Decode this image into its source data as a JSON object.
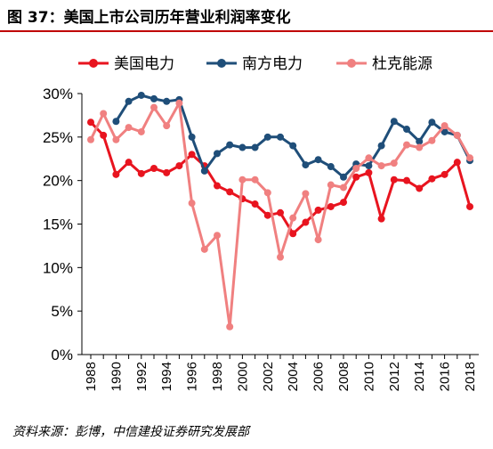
{
  "header": {
    "title": "图 37：美国上市公司历年营业利润率变化"
  },
  "footer": {
    "source": "资料来源：彭博，中信建投证券研究发展部"
  },
  "chart_data": {
    "type": "line",
    "title": "",
    "xlabel": "",
    "ylabel": "",
    "ylim": [
      0,
      30
    ],
    "yticks": [
      "0%",
      "5%",
      "10%",
      "15%",
      "20%",
      "25%",
      "30%"
    ],
    "xticks": [
      "1988",
      "1990",
      "1992",
      "1994",
      "1996",
      "1998",
      "2000",
      "2002",
      "2004",
      "2006",
      "2008",
      "2010",
      "2012",
      "2014",
      "2016",
      "2018"
    ],
    "grid": false,
    "legend": "top",
    "x": [
      1988,
      1989,
      1990,
      1991,
      1992,
      1993,
      1994,
      1995,
      1996,
      1997,
      1998,
      1999,
      2000,
      2001,
      2002,
      2003,
      2004,
      2005,
      2006,
      2007,
      2008,
      2009,
      2010,
      2011,
      2012,
      2013,
      2014,
      2015,
      2016,
      2017,
      2018
    ],
    "series": [
      {
        "name": "美国电力",
        "color": "#e8141f",
        "values": [
          26.7,
          25.2,
          20.7,
          22.1,
          20.8,
          21.4,
          20.9,
          21.7,
          23.0,
          21.7,
          19.4,
          18.7,
          17.9,
          17.3,
          16.0,
          16.3,
          13.9,
          15.2,
          16.6,
          17.0,
          17.5,
          20.4,
          20.9,
          15.6,
          20.1,
          20.0,
          19.1,
          20.2,
          20.7,
          22.1,
          17.0
        ]
      },
      {
        "name": "南方电力",
        "color": "#1f4e79",
        "values": [
          null,
          null,
          26.8,
          29.1,
          29.8,
          29.4,
          29.1,
          29.3,
          25.0,
          21.1,
          23.1,
          24.1,
          23.8,
          23.8,
          25.0,
          25.0,
          24.0,
          21.8,
          22.4,
          21.6,
          20.4,
          21.9,
          21.7,
          24.0,
          26.8,
          25.9,
          24.5,
          26.7,
          25.6,
          25.2,
          22.3
        ]
      },
      {
        "name": "杜克能源",
        "color": "#f08080",
        "values": [
          24.7,
          27.7,
          24.7,
          26.1,
          25.6,
          28.4,
          26.3,
          28.9,
          17.4,
          12.1,
          13.7,
          3.2,
          20.1,
          20.1,
          18.6,
          11.2,
          15.7,
          18.5,
          13.2,
          19.5,
          19.2,
          21.4,
          22.6,
          21.7,
          22.0,
          24.1,
          23.8,
          24.6,
          26.3,
          25.2,
          22.6
        ]
      }
    ]
  }
}
